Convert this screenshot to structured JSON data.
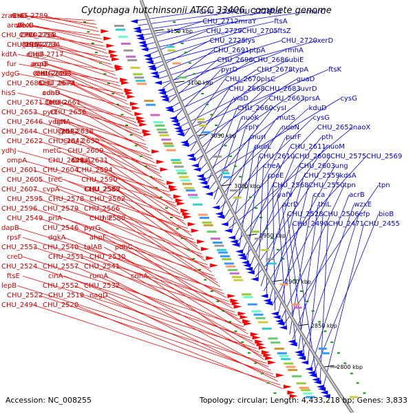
{
  "title": "Cytophaga hutchinsonii ATCC 33406, complete genome",
  "footer": {
    "accession": "Accession: NC_008255",
    "topology": "Topology: circular; Length: 4,433,218 bp; Genes: 3,833"
  },
  "colors": {
    "forward": "#ff0000",
    "reverse": "#0000ff",
    "backbone": "#888888",
    "tick": "#009900"
  },
  "ticks": [
    "3150 kbp",
    "3100 kbp",
    "3050 kbp",
    "3000 kbp",
    "2950 kbp",
    "2900 kbp",
    "2850 kbp",
    "2800 kbp"
  ],
  "left_labels": [
    "zraS",
    "zraS",
    "CHU_2789",
    "rcsC",
    "arcB",
    "rfbX",
    "wecB",
    "CHU_2770",
    "CHU_2768",
    "CHU_2755",
    "CHU_2751",
    "CHU_2734",
    "hupB",
    "CHU_2733",
    "kdtA",
    "CHU_2717",
    "engB",
    "fur",
    "aspB",
    "aroQ",
    "ydgG",
    "CHU_2693",
    "metG",
    "CHU_2682",
    "CHU_2685",
    "CHU_2674",
    "CHU_2679",
    "hisS",
    "coaD",
    "adhB",
    "CHU_2671",
    "nudC",
    "tolC",
    "CHU_2661",
    "CHU_2653",
    "pyrE",
    "CHU_2656",
    "CHU_2646",
    "yegN",
    "batA",
    "CHU_2644",
    "CHU_2632",
    "rpoE",
    "CHU_2638",
    "CHU_2622",
    "CHU_2642",
    "CHU_2630",
    "ydhJ",
    "metC",
    "CHU_2609",
    "ompA",
    "CHU_2621",
    "CHU_2631",
    "ompA",
    "CHU_2601",
    "CHU_2604",
    "CHU_2594",
    "CHU_2605",
    "treC",
    "CHU_2590",
    "CHU_2607",
    "cvpA",
    "CHU_2585",
    "CHU_2567",
    "CHU_2595",
    "CHU_2578",
    "CHU_2562",
    "CHU_2596",
    "CHU_2579",
    "CHU_2566",
    "CHU_2549",
    "priA",
    "CHU_2580",
    "rhlE",
    "dapB",
    "CHU_2546",
    "pyrG",
    "rpsF",
    "dgkA",
    "ahpF",
    "CHU_2553",
    "CHU_2540",
    "talAB",
    "pdhC",
    "creD",
    "CHU_2551",
    "CHU_2530",
    "CHU_2524",
    "CHU_2557",
    "CHU_2541",
    "ftsE",
    "cinA",
    "rumA",
    "cnhA",
    "lepB",
    "CHU_2552",
    "CHU_2532",
    "CHU_2522",
    "CHU_2519",
    "nagD",
    "CHU_2494",
    "CHU_2520"
  ],
  "right_labels": [
    "CHU_2737",
    "CHU_2728",
    "ftsI",
    "murC",
    "CHU_2712",
    "mraY",
    "ftsA",
    "CHU_2729",
    "CHU_2705",
    "ftsZ",
    "CHU_2725",
    "lys",
    "CHU_2720",
    "xerD",
    "CHU_2691",
    "ptpA",
    "rmhA",
    "CHU_2696",
    "CHU_2686",
    "ubiE",
    "pyrD",
    "CHU_2678",
    "typA",
    "ftsK",
    "CHU_2670",
    "plsC",
    "guaD",
    "CHU_2668",
    "CHU_2683",
    "uvrD",
    "yiaD",
    "CHU_2663",
    "prsA",
    "cysG",
    "CHU_2660",
    "cysI",
    "kduD",
    "nuoK",
    "mutS",
    "cysG",
    "rplY",
    "nuoN",
    "CHU_2652",
    "naoX",
    "murI",
    "purF",
    "pth",
    "nuoL",
    "CHU_2611",
    "nuoM",
    "CHU_2610",
    "CHU_2608",
    "CHU_2575",
    "CHU_2569",
    "cheA",
    "CHU_2603",
    "ung",
    "rpoE",
    "CHU_2559",
    "kdsA",
    "CHU_2568",
    "CHU_2550",
    "tpn",
    "tpn",
    "yafV",
    "cca",
    "acrB",
    "acrD",
    "thiL",
    "wzxE",
    "CHU_2528",
    "CHU_2506",
    "efp",
    "bioB",
    "CHU_2490",
    "CHU_2471",
    "CHU_2455"
  ]
}
